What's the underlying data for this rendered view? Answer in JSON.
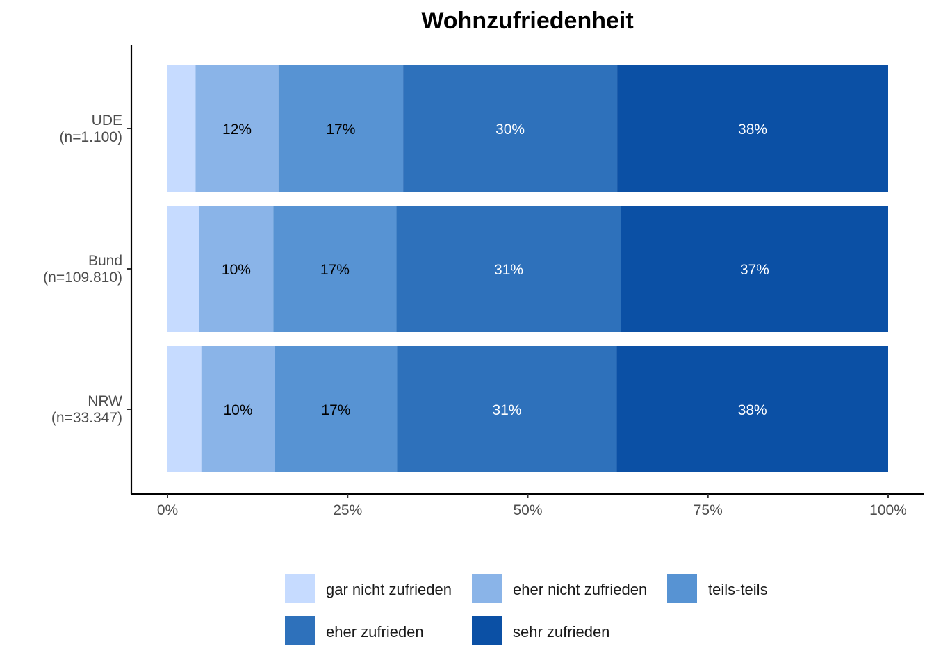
{
  "chart_data": {
    "type": "bar",
    "orientation": "horizontal",
    "stacked": true,
    "percent_scale": true,
    "title": "Wohnzufriedenheit",
    "xlabel": "",
    "ylabel": "",
    "xlim": [
      0,
      100
    ],
    "x_ticks": [
      "0%",
      "25%",
      "50%",
      "75%",
      "100%"
    ],
    "categories": [
      "UDE\n(n=1.100)",
      "Bund\n(n=109.810)",
      "NRW\n(n=33.347)"
    ],
    "series": [
      {
        "name": "gar nicht zufrieden",
        "color": "#c6dbff",
        "label_color": "#000000",
        "values": [
          3.9,
          4.4,
          4.7
        ],
        "labels": [
          "",
          "",
          ""
        ]
      },
      {
        "name": "eher nicht zufrieden",
        "color": "#8ab4e8",
        "label_color": "#000000",
        "values": [
          11.5,
          10.3,
          10.2
        ],
        "labels": [
          "12%",
          "10%",
          "10%"
        ]
      },
      {
        "name": "teils-teils",
        "color": "#5793d3",
        "label_color": "#000000",
        "values": [
          17.3,
          17.1,
          17.0
        ],
        "labels": [
          "17%",
          "17%",
          "17%"
        ]
      },
      {
        "name": "eher zufrieden",
        "color": "#2e71bb",
        "label_color": "#ffffff",
        "values": [
          29.7,
          31.2,
          30.5
        ],
        "labels": [
          "30%",
          "31%",
          "31%"
        ]
      },
      {
        "name": "sehr zufrieden",
        "color": "#0b50a5",
        "label_color": "#ffffff",
        "values": [
          37.6,
          37.1,
          37.7
        ],
        "labels": [
          "38%",
          "37%",
          "38%"
        ]
      }
    ],
    "legend_position": "bottom",
    "grid": false
  }
}
